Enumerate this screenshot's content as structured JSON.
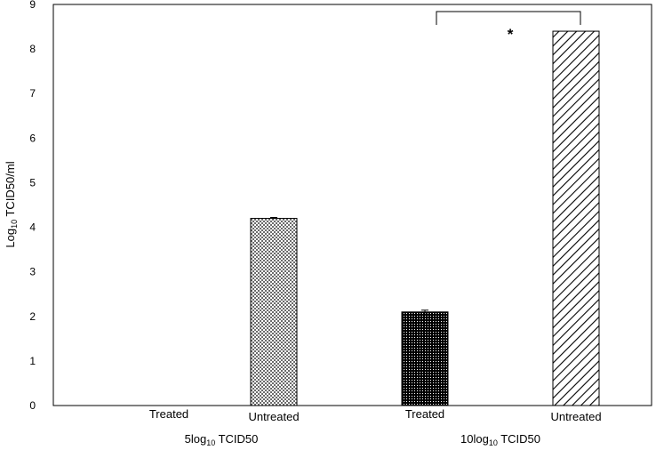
{
  "chart_data": {
    "type": "bar",
    "y_axis": {
      "label_prefix": "Log",
      "label_sub": "10",
      "label_suffix": " TCID50/ml",
      "ylim": [
        0,
        9
      ],
      "ticks": [
        "0",
        "1",
        "2",
        "3",
        "4",
        "5",
        "6",
        "7",
        "8",
        "9"
      ]
    },
    "groups": [
      {
        "label_prefix": "5log",
        "label_sub": "10",
        "label_suffix": " TCID50",
        "bars": [
          {
            "category": "Treated",
            "value": 0,
            "error": 0,
            "pattern": "dots-fine"
          },
          {
            "category": "Untreated",
            "value": 4.2,
            "error": 0.02,
            "pattern": "checker"
          }
        ]
      },
      {
        "label_prefix": "10log",
        "label_sub": "10",
        "label_suffix": " TCID50",
        "bars": [
          {
            "category": "Treated",
            "value": 2.1,
            "error": 0.04,
            "pattern": "dots-dense"
          },
          {
            "category": "Untreated",
            "value": 8.4,
            "error": 0,
            "pattern": "diagonal"
          }
        ]
      }
    ],
    "significance": {
      "between": [
        "10log10 Treated",
        "10log10 Untreated"
      ],
      "marker": "*"
    },
    "grid": false,
    "legend": "none"
  }
}
